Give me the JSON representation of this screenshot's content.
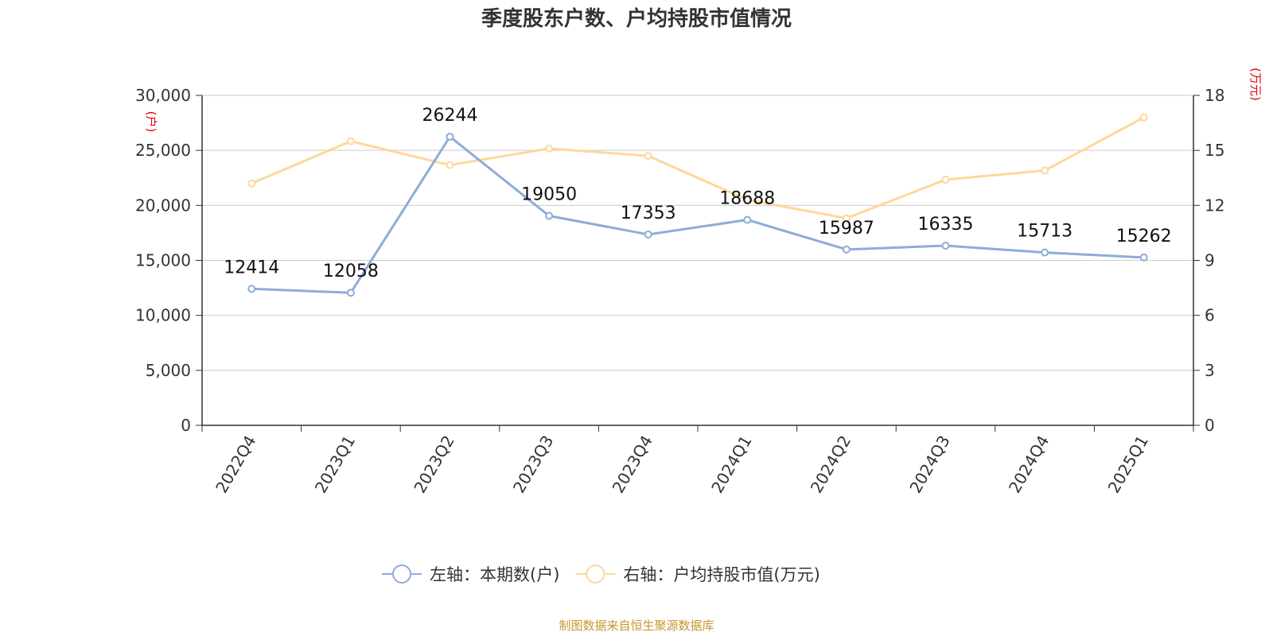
{
  "chart_data": {
    "type": "line",
    "title": "季度股东户数、户均持股市值情况",
    "categories": [
      "2022Q4",
      "2023Q1",
      "2023Q2",
      "2023Q3",
      "2023Q4",
      "2024Q1",
      "2024Q2",
      "2024Q3",
      "2024Q4",
      "2025Q1"
    ],
    "y_left": {
      "unit_label": "(户)",
      "range": [
        0,
        30000
      ],
      "ticks": [
        0,
        5000,
        10000,
        15000,
        20000,
        25000,
        30000
      ],
      "tick_labels": [
        "0",
        "5,000",
        "10,000",
        "15,000",
        "20,000",
        "25,000",
        "30,000"
      ]
    },
    "y_right": {
      "unit_label": "(万元)",
      "range": [
        0,
        18
      ],
      "ticks": [
        0,
        3,
        6,
        9,
        12,
        15,
        18
      ],
      "tick_labels": [
        "0",
        "3",
        "6",
        "9",
        "12",
        "15",
        "18"
      ]
    },
    "grid": true,
    "legend_position": "bottom-center",
    "series": [
      {
        "name": "左轴：本期数(户)",
        "axis": "left",
        "color": "#8eacd8",
        "values": [
          12414,
          12058,
          26244,
          19050,
          17353,
          18688,
          15987,
          16335,
          15713,
          15262
        ],
        "data_labels": [
          "12414",
          "12058",
          "26244",
          "19050",
          "17353",
          "18688",
          "15987",
          "16335",
          "15713",
          "15262"
        ]
      },
      {
        "name": "右轴：户均持股市值(万元)",
        "axis": "right",
        "color": "#fdd89a",
        "values": [
          13.2,
          15.5,
          14.2,
          15.1,
          14.7,
          12.3,
          11.3,
          13.4,
          13.9,
          16.8
        ]
      }
    ],
    "source_note": "制图数据来自恒生聚源数据库"
  }
}
